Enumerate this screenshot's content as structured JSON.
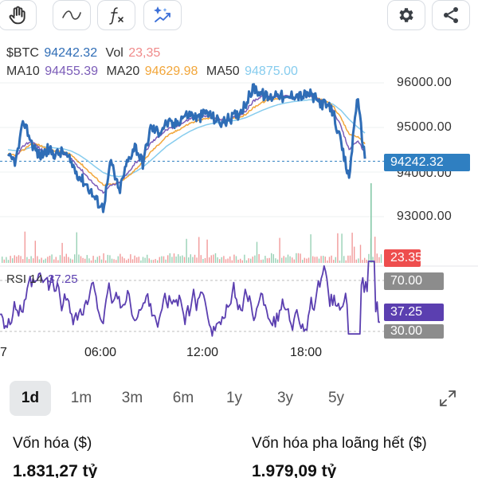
{
  "toolbar": {
    "tools": [
      {
        "icon": "hand-icon"
      },
      {
        "icon": "draw-line-icon"
      },
      {
        "icon": "function-icon"
      },
      {
        "icon": "ai-sparkle-icon"
      }
    ],
    "right": [
      {
        "icon": "gear-icon"
      },
      {
        "icon": "share-icon"
      }
    ]
  },
  "legend": {
    "symbol": "$BTC",
    "price": "94242.32",
    "vol_label": "Vol",
    "vol_value": "23,35",
    "ma10_label": "MA10",
    "ma10_value": "94455.39",
    "ma20_label": "MA20",
    "ma20_value": "94629.98",
    "ma50_label": "MA50",
    "ma50_value": "94875.00"
  },
  "colors": {
    "price_line": "#2f6db6",
    "ma10": "#7b5cb8",
    "ma20": "#f2a63a",
    "ma50": "#86ccee",
    "vol_up": "#86c9a8",
    "vol_down": "#f08a8a",
    "rsi": "#5b3fb0",
    "current_price_tag": "#2f7fc1",
    "vol_tag": "#ee4e4e",
    "rsi_level_tag": "#8c8c8c",
    "rsi_current_tag": "#5b3fb0"
  },
  "price_axis": {
    "ticks": [
      "96000.00",
      "95000.00",
      "94000.00",
      "93000.00"
    ],
    "current_tag": "94242.32",
    "volume_tag": "23.35"
  },
  "rsi": {
    "label": "RSI 14",
    "value": "37.25",
    "upper": "70.00",
    "lower": "30.00",
    "current_tag": "37.25"
  },
  "time_axis": {
    "labels": [
      "7",
      "06:00",
      "12:00",
      "18:00"
    ]
  },
  "ranges": {
    "items": [
      "1d",
      "1m",
      "3m",
      "6m",
      "1y",
      "3y",
      "5y"
    ],
    "active": "1d"
  },
  "stats": {
    "market_cap_label": "Vốn hóa ($)",
    "market_cap_value": "1.831,27 tỷ",
    "fdv_label": "Vốn hóa pha loãng hết ($)",
    "fdv_value": "1.979,09 tỷ"
  },
  "chart_data": {
    "type": "line",
    "title": "",
    "ylim": [
      93000,
      96200
    ],
    "price_series_x_hours": [
      0,
      0.5,
      1,
      1.5,
      2,
      2.5,
      3,
      3.5,
      4,
      4.5,
      5,
      5.5,
      6,
      6.5,
      7,
      7.5,
      8,
      8.5,
      9,
      9.5,
      10,
      10.5,
      11,
      11.5,
      12,
      12.5,
      13,
      13.5,
      14,
      14.5,
      15,
      15.5,
      16,
      16.5,
      17,
      17.5,
      18,
      18.5,
      19,
      19.5,
      20,
      20.5,
      21,
      21.5,
      22,
      22.5
    ],
    "series": [
      {
        "name": "$BTC",
        "values": [
          94300,
          94250,
          95150,
          94650,
          94350,
          94500,
          94400,
          94450,
          94200,
          93900,
          93700,
          93400,
          93200,
          94250,
          93550,
          94200,
          94600,
          94200,
          95000,
          94900,
          95100,
          95050,
          95250,
          95300,
          95200,
          95350,
          95200,
          95100,
          95200,
          95300,
          95550,
          95900,
          95750,
          95650,
          95800,
          95600,
          95750,
          95700,
          95750,
          95600,
          95500,
          95350,
          94600,
          93850,
          95700,
          94300
        ]
      },
      {
        "name": "MA10",
        "values": [
          94350,
          94320,
          94600,
          94700,
          94520,
          94450,
          94420,
          94400,
          94300,
          94100,
          93900,
          93700,
          93550,
          93700,
          93750,
          93950,
          94200,
          94350,
          94650,
          94800,
          94950,
          95000,
          95100,
          95200,
          95220,
          95250,
          95230,
          95180,
          95200,
          95250,
          95380,
          95600,
          95700,
          95700,
          95700,
          95700,
          95700,
          95700,
          95700,
          95650,
          95550,
          95400,
          95000,
          94500,
          94700,
          94455
        ]
      },
      {
        "name": "MA20",
        "values": [
          94400,
          94380,
          94500,
          94650,
          94600,
          94520,
          94480,
          94460,
          94380,
          94220,
          94050,
          93880,
          93720,
          93720,
          93760,
          93880,
          94050,
          94220,
          94450,
          94620,
          94800,
          94900,
          95000,
          95100,
          95150,
          95200,
          95210,
          95180,
          95190,
          95210,
          95300,
          95450,
          95560,
          95620,
          95650,
          95660,
          95680,
          95690,
          95700,
          95660,
          95600,
          95480,
          95200,
          94850,
          94800,
          94630
        ]
      },
      {
        "name": "MA50",
        "values": [
          94500,
          94480,
          94500,
          94560,
          94580,
          94560,
          94540,
          94520,
          94470,
          94380,
          94260,
          94120,
          93990,
          93920,
          93900,
          93930,
          94000,
          94110,
          94260,
          94420,
          94580,
          94700,
          94820,
          94920,
          95000,
          95060,
          95100,
          95120,
          95140,
          95170,
          95220,
          95300,
          95380,
          95450,
          95510,
          95550,
          95580,
          95600,
          95620,
          95610,
          95580,
          95520,
          95380,
          95180,
          95020,
          94875
        ]
      }
    ],
    "current_price": 94242.32,
    "rsi_levels": {
      "upper": 70,
      "lower": 30,
      "current": 37.25
    }
  }
}
